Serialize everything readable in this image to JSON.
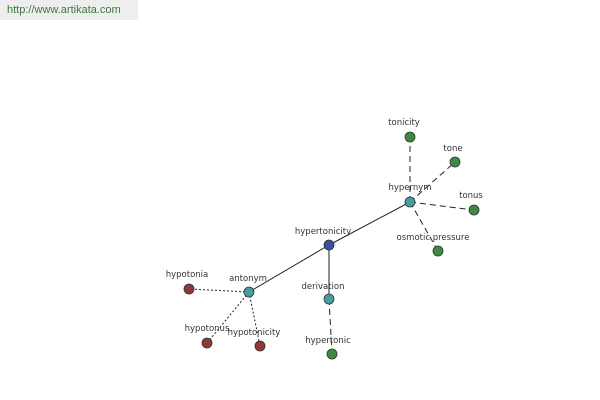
{
  "header": {
    "url": "http://www.artikata.com"
  },
  "nodes": [
    {
      "label": "hypertonicity"
    },
    {
      "label": "hypernym"
    },
    {
      "label": "tonicity"
    },
    {
      "label": "tone"
    },
    {
      "label": "tonus"
    },
    {
      "label": "osmotic pressure"
    },
    {
      "label": "antonym"
    },
    {
      "label": "hypotonia"
    },
    {
      "label": "hypotonus"
    },
    {
      "label": "hypotonicity"
    },
    {
      "label": "derivation"
    },
    {
      "label": "hypertonic"
    }
  ]
}
